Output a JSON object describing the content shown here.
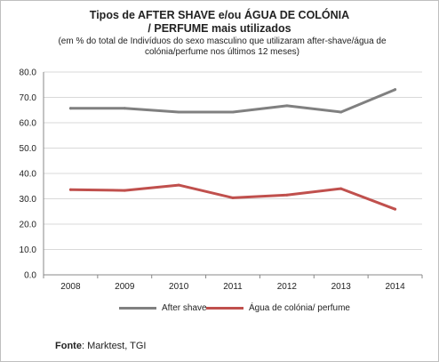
{
  "chart_data": {
    "type": "line",
    "title_line1": "Tipos de AFTER SHAVE e/ou ÁGUA DE COLÓNIA",
    "title_line2": "/ PERFUME mais utilizados",
    "subtitle_line1": "(em % do total de  Indivíduos do sexo masculino que utilizaram after-shave/água de",
    "subtitle_line2": "colónia/perfume nos últimos 12 meses)",
    "categories": [
      "2008",
      "2009",
      "2010",
      "2011",
      "2012",
      "2013",
      "2014"
    ],
    "series": [
      {
        "name": "After shave",
        "color": "#808080",
        "values": [
          65.7,
          65.7,
          64.2,
          64.2,
          66.7,
          64.2,
          73.1
        ]
      },
      {
        "name": "Água de colónia/ perfume",
        "color": "#c0504d",
        "values": [
          33.6,
          33.3,
          35.4,
          30.4,
          31.5,
          34.0,
          25.9
        ]
      }
    ],
    "ylim": [
      0,
      80
    ],
    "yticks": [
      "0.0",
      "10.0",
      "20.0",
      "30.0",
      "40.0",
      "50.0",
      "60.0",
      "70.0",
      "80.0"
    ],
    "grid": true,
    "legend_position": "bottom"
  },
  "source_label": "Fonte",
  "source_text": ": Marktest, TGI"
}
